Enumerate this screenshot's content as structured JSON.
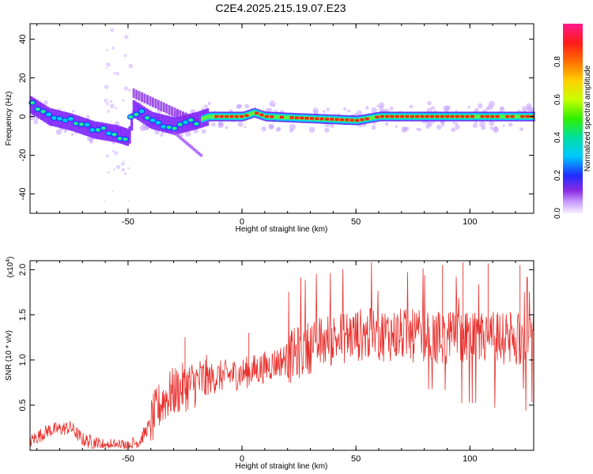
{
  "title": "C2E4.2025.215.19.07.E23",
  "chart_data": [
    {
      "type": "heatmap",
      "xlabel": "Height of straight line (km)",
      "ylabel": "Frequency (Hz)",
      "xlim": [
        -93,
        128
      ],
      "ylim": [
        -50,
        48
      ],
      "xticks": [
        -50,
        0,
        50,
        100
      ],
      "yticks": [
        -40,
        -20,
        0,
        20,
        40
      ],
      "colorbar": {
        "label": "Normalized spectral amplitude",
        "range": [
          0,
          1
        ],
        "ticks": [
          "0.0",
          "0.2",
          "0.4",
          "0.6",
          "0.8"
        ],
        "ticks_values": [
          0,
          0.2,
          0.4,
          0.6,
          0.8
        ]
      },
      "ridge": [
        {
          "x": -93,
          "y": 6
        },
        {
          "x": -85,
          "y": 0
        },
        {
          "x": -75,
          "y": -3
        },
        {
          "x": -65,
          "y": -7
        },
        {
          "x": -55,
          "y": -9
        },
        {
          "x": -50,
          "y": -11
        },
        {
          "x": -48,
          "y": 4
        },
        {
          "x": -40,
          "y": -2
        },
        {
          "x": -30,
          "y": -5
        },
        {
          "x": -20,
          "y": -2
        },
        {
          "x": -15,
          "y": 0
        },
        {
          "x": 0,
          "y": 0
        },
        {
          "x": 5,
          "y": 2
        },
        {
          "x": 10,
          "y": 0
        },
        {
          "x": 50,
          "y": -2
        },
        {
          "x": 60,
          "y": 0
        },
        {
          "x": 128,
          "y": 0
        }
      ]
    },
    {
      "type": "line",
      "xlabel": "Height of straight line (km)",
      "ylabel": "SNR (10 * v/v)",
      "y_multiplier_label": "(x10",
      "y_multiplier_exp": "4",
      "y_multiplier_close": ")",
      "xlim": [
        -93,
        128
      ],
      "ylim": [
        0.0,
        2.1
      ],
      "xticks": [
        -50,
        0,
        50,
        100
      ],
      "yticks": [
        "0.5",
        "1.0",
        "1.5",
        "2.0"
      ],
      "yticks_values": [
        0.5,
        1.0,
        1.5,
        2.0
      ],
      "color": "#e8302c",
      "envelope": [
        {
          "x": -93,
          "y": 0.1
        },
        {
          "x": -85,
          "y": 0.22
        },
        {
          "x": -75,
          "y": 0.25
        },
        {
          "x": -70,
          "y": 0.12
        },
        {
          "x": -60,
          "y": 0.05
        },
        {
          "x": -50,
          "y": 0.05
        },
        {
          "x": -45,
          "y": 0.1
        },
        {
          "x": -40,
          "y": 0.3
        },
        {
          "x": -35,
          "y": 0.55
        },
        {
          "x": -30,
          "y": 0.65
        },
        {
          "x": -25,
          "y": 0.7
        },
        {
          "x": -20,
          "y": 0.75
        },
        {
          "x": -10,
          "y": 0.82
        },
        {
          "x": 0,
          "y": 0.85
        },
        {
          "x": 10,
          "y": 0.92
        },
        {
          "x": 20,
          "y": 1.02
        },
        {
          "x": 30,
          "y": 1.15
        },
        {
          "x": 40,
          "y": 1.23
        },
        {
          "x": 50,
          "y": 1.28
        },
        {
          "x": 60,
          "y": 1.28
        },
        {
          "x": 70,
          "y": 1.28
        },
        {
          "x": 80,
          "y": 1.25
        },
        {
          "x": 90,
          "y": 1.25
        },
        {
          "x": 100,
          "y": 1.22
        },
        {
          "x": 110,
          "y": 1.25
        },
        {
          "x": 120,
          "y": 1.23
        },
        {
          "x": 128,
          "y": 1.25
        }
      ],
      "peaks": [
        {
          "x": 97,
          "y": 2.08
        },
        {
          "x": 108,
          "y": 2.07
        },
        {
          "x": 122,
          "y": 2.05
        },
        {
          "x": 88,
          "y": 2.05
        },
        {
          "x": -25,
          "y": 1.25
        },
        {
          "x": 3,
          "y": 1.3
        }
      ]
    }
  ]
}
